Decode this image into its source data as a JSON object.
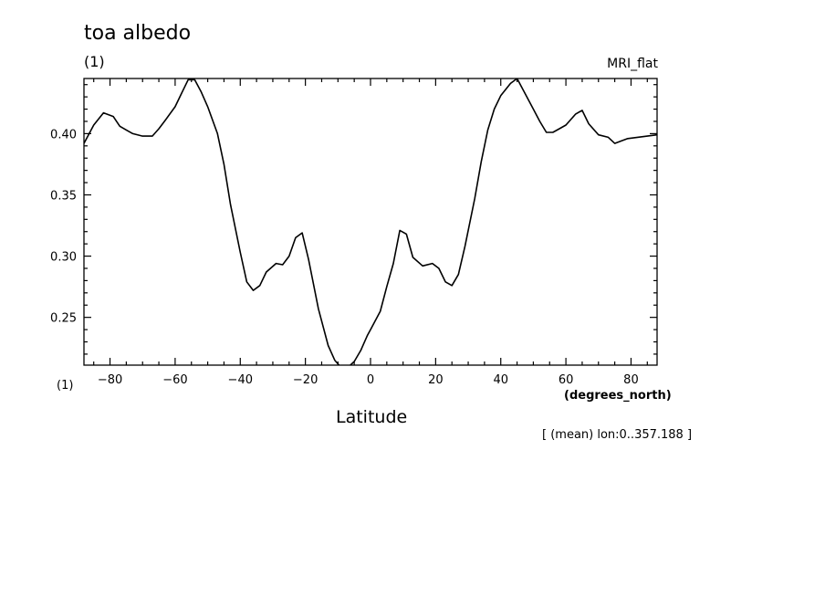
{
  "chart_data": {
    "type": "line",
    "title": "toa albedo",
    "title_units": "(1)",
    "dataset": "MRI_flat",
    "xlabel": "Latitude",
    "xunits": "(degrees_north)",
    "yunits": "(1)",
    "note": "[ (mean) lon:0..357.188 ]",
    "xlim": [
      -88,
      88
    ],
    "ylim": [
      0.211,
      0.445
    ],
    "xticks": [
      -80,
      -60,
      -40,
      -20,
      0,
      20,
      40,
      60,
      80
    ],
    "yticks": [
      0.25,
      0.3,
      0.35,
      0.4
    ],
    "grid": false,
    "series": [
      {
        "x": [
          -88,
          -85,
          -82,
          -79,
          -77,
          -75,
          -73,
          -70,
          -67,
          -65,
          -63,
          -60,
          -58,
          -56,
          -54,
          -52,
          -50,
          -47,
          -45,
          -43,
          -40,
          -38,
          -36,
          -34,
          -32,
          -29,
          -27,
          -25,
          -23,
          -21,
          -19,
          -16,
          -13,
          -11,
          -9,
          -7,
          -5,
          -3,
          -1,
          0,
          1,
          3,
          5,
          7,
          9,
          11,
          13,
          16,
          19,
          21,
          23,
          25,
          27,
          29,
          32,
          34,
          36,
          38,
          40,
          43,
          45,
          47,
          50,
          52,
          54,
          56,
          58,
          60,
          63,
          65,
          67,
          70,
          73,
          75,
          77,
          79,
          82,
          85,
          88
        ],
        "y": [
          0.392,
          0.407,
          0.417,
          0.414,
          0.406,
          0.403,
          0.4,
          0.398,
          0.398,
          0.404,
          0.411,
          0.422,
          0.433,
          0.444,
          0.444,
          0.434,
          0.422,
          0.4,
          0.375,
          0.342,
          0.303,
          0.279,
          0.272,
          0.276,
          0.287,
          0.294,
          0.293,
          0.3,
          0.315,
          0.319,
          0.297,
          0.257,
          0.227,
          0.215,
          0.209,
          0.209,
          0.214,
          0.223,
          0.235,
          0.24,
          0.245,
          0.255,
          0.275,
          0.294,
          0.321,
          0.318,
          0.299,
          0.292,
          0.294,
          0.29,
          0.279,
          0.276,
          0.285,
          0.308,
          0.347,
          0.377,
          0.403,
          0.42,
          0.431,
          0.441,
          0.445,
          0.435,
          0.42,
          0.41,
          0.401,
          0.401,
          0.404,
          0.407,
          0.416,
          0.419,
          0.408,
          0.399,
          0.397,
          0.392,
          0.394,
          0.396,
          0.397,
          0.398,
          0.399
        ]
      }
    ]
  }
}
